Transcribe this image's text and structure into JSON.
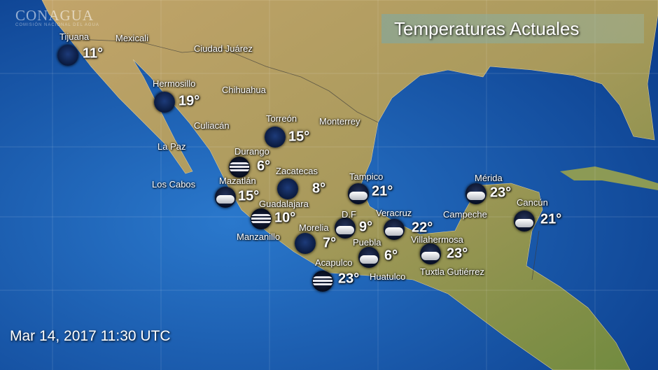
{
  "title": "Temperaturas Actuales",
  "logo": {
    "name": "CONAGUA",
    "subtitle": "COMISIÓN NACIONAL DEL AGUA"
  },
  "timestamp": "Mar 14, 2017 11:30 UTC",
  "colors": {
    "ocean": "#1a5fb0",
    "land": "#b59a62",
    "text": "#ffffff"
  },
  "stations": [
    {
      "name": "Tijuana",
      "temp": "11°",
      "icon": "night-clear"
    },
    {
      "name": "Hermosillo",
      "temp": "19°",
      "icon": "night-clear"
    },
    {
      "name": "Torreón",
      "temp": "15°",
      "icon": "night-clear"
    },
    {
      "name": "Durango",
      "temp": "6°",
      "icon": "fog"
    },
    {
      "name": "Zacatecas",
      "temp": "8°",
      "icon": "night-clear"
    },
    {
      "name": "Mazatlán",
      "temp": "15°",
      "icon": "night-cloudy"
    },
    {
      "name": "Tampico",
      "temp": "21°",
      "icon": "night-cloudy"
    },
    {
      "name": "Mérida",
      "temp": "23°",
      "icon": "night-cloudy"
    },
    {
      "name": "Cancún",
      "temp": "21°",
      "icon": "night-cloudy"
    },
    {
      "name": "Guadalajara",
      "temp": "10°",
      "icon": "fog"
    },
    {
      "name": "D.F",
      "temp": "9°",
      "icon": "night-cloudy"
    },
    {
      "name": "Veracruz",
      "temp": "22°",
      "icon": "night-cloudy"
    },
    {
      "name": "Morelia",
      "temp": "7°",
      "icon": "night-clear"
    },
    {
      "name": "Villahermosa",
      "temp": "23°",
      "icon": "night-cloudy"
    },
    {
      "name": "Puebla",
      "temp": "6°",
      "icon": "night-cloudy"
    },
    {
      "name": "Acapulco",
      "temp": "23°",
      "icon": "fog"
    }
  ],
  "cities": [
    "Mexicali",
    "Ciudad Juárez",
    "Chihuahua",
    "Monterrey",
    "Culiacán",
    "La Paz",
    "Los Cabos",
    "Manzanillo",
    "Huatulco",
    "Campeche",
    "Tuxtla Gutiérrez"
  ]
}
